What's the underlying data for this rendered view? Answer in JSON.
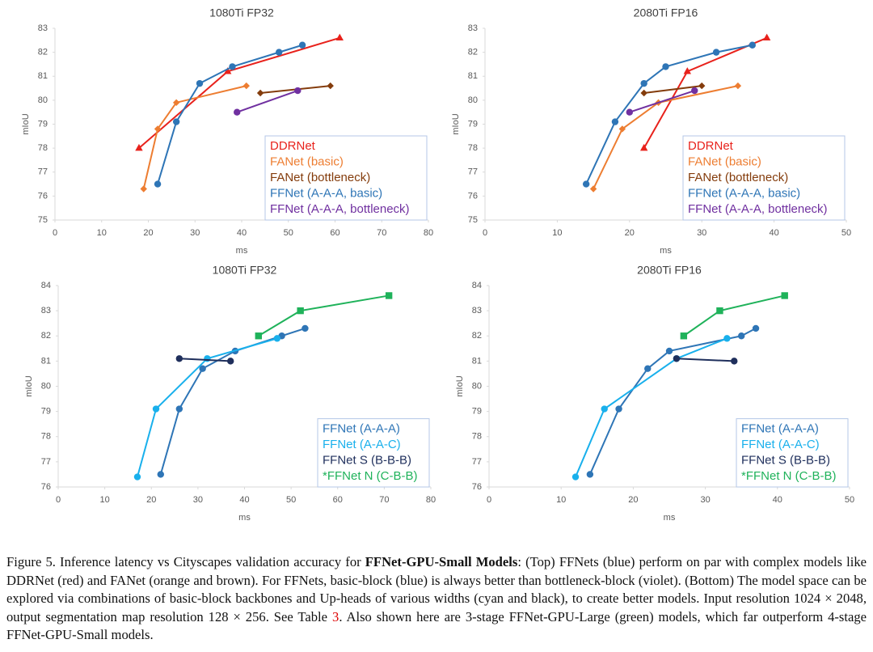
{
  "chart_data": [
    {
      "type": "line",
      "title": "1080Ti FP32",
      "xlabel": "ms",
      "ylabel": "mIoU",
      "xlim": [
        0,
        80
      ],
      "xticks": [
        0,
        10,
        20,
        30,
        40,
        50,
        60,
        70,
        80
      ],
      "ylim": [
        75,
        83
      ],
      "yticks": [
        75,
        76,
        77,
        78,
        79,
        80,
        81,
        82,
        83
      ],
      "grid": false,
      "legend": "lower right",
      "series": [
        {
          "name": "DDRNet",
          "color": "#e8221c",
          "marker": "triangle",
          "x": [
            18,
            37,
            61
          ],
          "values": [
            78.0,
            81.2,
            82.6
          ]
        },
        {
          "name": "FANet (basic)",
          "color": "#ed7d31",
          "marker": "diamond",
          "x": [
            19,
            22,
            26,
            41
          ],
          "values": [
            76.3,
            78.8,
            79.9,
            80.6
          ]
        },
        {
          "name": "FANet (bottleneck)",
          "color": "#843c0c",
          "marker": "diamond",
          "x": [
            44,
            59
          ],
          "values": [
            80.3,
            80.6
          ]
        },
        {
          "name": "FFNet (A-A-A, basic)",
          "color": "#2e75b6",
          "marker": "circle",
          "x": [
            22,
            26,
            31,
            38,
            48,
            53
          ],
          "values": [
            76.5,
            79.1,
            80.7,
            81.4,
            82.0,
            82.3
          ]
        },
        {
          "name": "FFNet (A-A-A, bottleneck)",
          "color": "#7030a0",
          "marker": "circle",
          "x": [
            39,
            52
          ],
          "values": [
            79.5,
            80.4
          ]
        }
      ]
    },
    {
      "type": "line",
      "title": "2080Ti FP16",
      "xlabel": "ms",
      "ylabel": "mIoU",
      "xlim": [
        0,
        50
      ],
      "xticks": [
        0,
        10,
        20,
        30,
        40,
        50
      ],
      "ylim": [
        75,
        83
      ],
      "yticks": [
        75,
        76,
        77,
        78,
        79,
        80,
        81,
        82,
        83
      ],
      "grid": false,
      "legend": "lower right",
      "series": [
        {
          "name": "DDRNet",
          "color": "#e8221c",
          "marker": "triangle",
          "x": [
            22,
            28,
            39
          ],
          "values": [
            78.0,
            81.2,
            82.6
          ]
        },
        {
          "name": "FANet (basic)",
          "color": "#ed7d31",
          "marker": "diamond",
          "x": [
            15,
            19,
            24,
            35
          ],
          "values": [
            76.3,
            78.8,
            79.9,
            80.6
          ]
        },
        {
          "name": "FANet (bottleneck)",
          "color": "#843c0c",
          "marker": "diamond",
          "x": [
            22,
            30
          ],
          "values": [
            80.3,
            80.6
          ]
        },
        {
          "name": "FFNet (A-A-A, basic)",
          "color": "#2e75b6",
          "marker": "circle",
          "x": [
            14,
            18,
            22,
            25,
            32,
            37
          ],
          "values": [
            76.5,
            79.1,
            80.7,
            81.4,
            82.0,
            82.3
          ]
        },
        {
          "name": "FFNet (A-A-A, bottleneck)",
          "color": "#7030a0",
          "marker": "circle",
          "x": [
            20,
            29
          ],
          "values": [
            79.5,
            80.4
          ]
        }
      ]
    },
    {
      "type": "line",
      "title": "1080Ti FP32",
      "xlabel": "ms",
      "ylabel": "mIoU",
      "xlim": [
        0,
        80
      ],
      "xticks": [
        0,
        10,
        20,
        30,
        40,
        50,
        60,
        70,
        80
      ],
      "ylim": [
        76,
        84
      ],
      "yticks": [
        76,
        77,
        78,
        79,
        80,
        81,
        82,
        83,
        84
      ],
      "grid": false,
      "legend": "lower right",
      "series": [
        {
          "name": "FFNet (A-A-A)",
          "color": "#2e75b6",
          "marker": "circle",
          "x": [
            22,
            26,
            31,
            38,
            48,
            53
          ],
          "values": [
            76.5,
            79.1,
            80.7,
            81.4,
            82.0,
            82.3
          ]
        },
        {
          "name": "FFNet (A-A-C)",
          "color": "#19b0ec",
          "marker": "circle",
          "x": [
            17,
            21,
            32,
            47
          ],
          "values": [
            76.4,
            79.1,
            81.1,
            81.9
          ]
        },
        {
          "name": "FFNet S (B-B-B)",
          "color": "#1f2f5c",
          "marker": "circle",
          "x": [
            26,
            37
          ],
          "values": [
            81.1,
            81.0
          ]
        },
        {
          "name": "*FFNet N (C-B-B)",
          "color": "#1fb25a",
          "marker": "square",
          "x": [
            43,
            52,
            71
          ],
          "values": [
            82.0,
            83.0,
            83.6
          ]
        }
      ]
    },
    {
      "type": "line",
      "title": "2080Ti FP16",
      "xlabel": "ms",
      "ylabel": "mIoU",
      "xlim": [
        0,
        50
      ],
      "xticks": [
        0,
        10,
        20,
        30,
        40,
        50
      ],
      "ylim": [
        76,
        84
      ],
      "yticks": [
        76,
        77,
        78,
        79,
        80,
        81,
        82,
        83,
        84
      ],
      "grid": false,
      "legend": "lower right",
      "series": [
        {
          "name": "FFNet (A-A-A)",
          "color": "#2e75b6",
          "marker": "circle",
          "x": [
            14,
            18,
            22,
            25,
            35,
            37
          ],
          "values": [
            76.5,
            79.1,
            80.7,
            81.4,
            82.0,
            82.3
          ]
        },
        {
          "name": "FFNet (A-A-C)",
          "color": "#19b0ec",
          "marker": "circle",
          "x": [
            12,
            16,
            26,
            33
          ],
          "values": [
            76.4,
            79.1,
            81.1,
            81.9
          ]
        },
        {
          "name": "FFNet S (B-B-B)",
          "color": "#1f2f5c",
          "marker": "circle",
          "x": [
            26,
            34
          ],
          "values": [
            81.1,
            81.0
          ]
        },
        {
          "name": "*FFNet N (C-B-B)",
          "color": "#1fb25a",
          "marker": "square",
          "x": [
            27,
            32,
            41
          ],
          "values": [
            82.0,
            83.0,
            83.6
          ]
        }
      ]
    }
  ],
  "caption": {
    "label": "Figure 5.",
    "text_1": "Inference latency vs Cityscapes validation accuracy for",
    "bold": "FFNet-GPU-Small Models",
    "text_2": ": (Top) FFNets (blue) perform on par with complex models like DDRNet (red) and FANet (orange and brown). For FFNets, basic-block (blue) is always better than bottleneck-block (violet). (Bottom) The model space can be explored via combinations of basic-block backbones and Up-heads of various widths (cyan and black), to create better models. Input resolution 1024 × 2048, output segmentation map resolution 128 × 256. See Table",
    "ref": "3",
    "text_3": ". Also shown here are 3-stage FFNet-GPU-Large (green) models, which far outperform 4-stage FFNet-GPU-Small models."
  }
}
